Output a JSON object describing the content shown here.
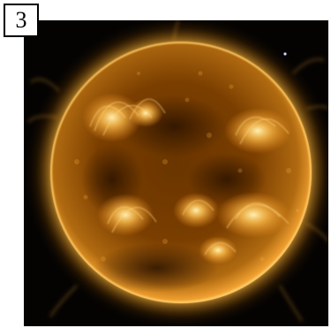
{
  "panel": {
    "label": "3",
    "image_subject": "sun-extreme-ultraviolet-icon",
    "colors": {
      "background": "#050302",
      "sun_core": "#7a3c00",
      "sun_bright": "#ffd070",
      "corona": "#ffb030"
    }
  }
}
